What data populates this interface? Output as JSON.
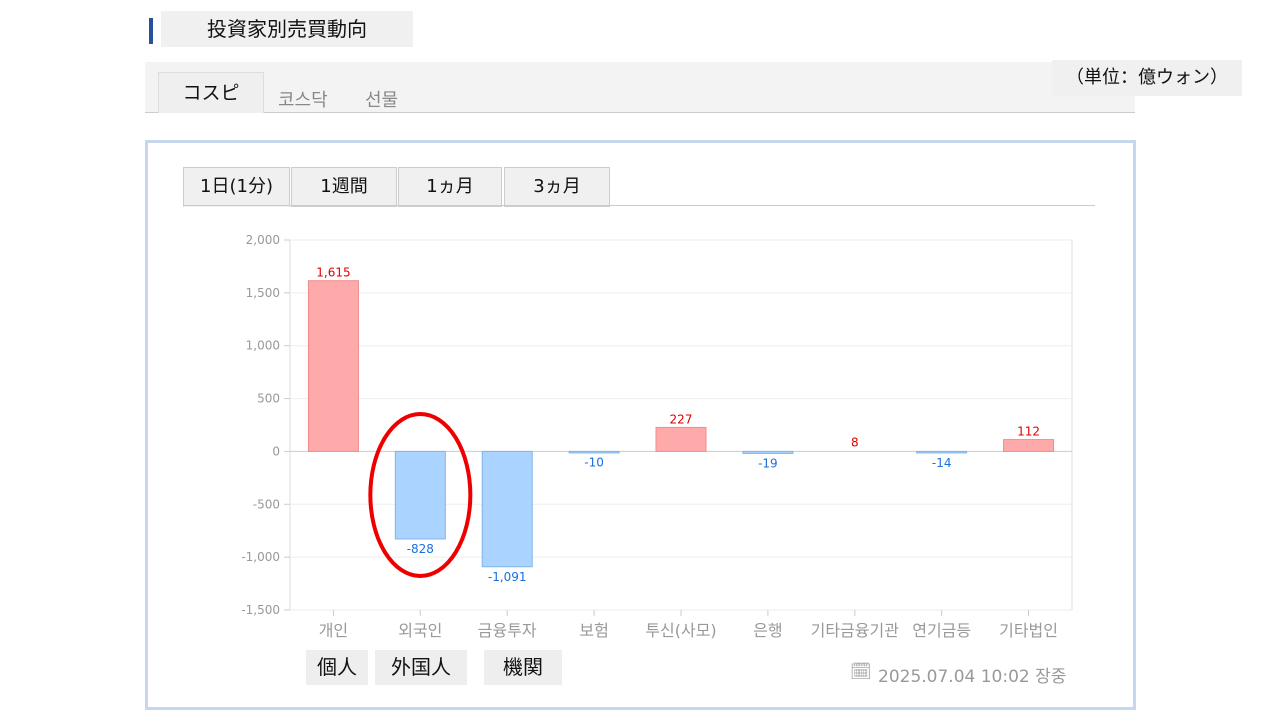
{
  "title": "投資家別売買動向",
  "unit": "（単位：億ウォン）",
  "market_tabs": [
    "コスピ",
    "코스닥",
    "선물"
  ],
  "period_tabs": [
    "1日(1分)",
    "1週間",
    "1ヵ月",
    "3ヵ月"
  ],
  "timestamp": "2025.07.04 10:02 장중",
  "annotations": [
    "個人",
    "外国人",
    "機関"
  ],
  "colors": {
    "positive": "#ffaaaa",
    "negative": "#aad4ff",
    "positive_label": "#e00000",
    "negative_label": "#1a6fe0",
    "highlight": "#ee0000"
  },
  "chart_data": {
    "type": "bar",
    "categories": [
      "개인",
      "외국인",
      "금융투자",
      "보험",
      "투신(사모)",
      "은행",
      "기타금융기관",
      "연기금등",
      "기타법인"
    ],
    "values": [
      1615,
      -828,
      -1091,
      -10,
      227,
      -19,
      8,
      -14,
      112
    ],
    "data_labels": [
      "1,615",
      "-828",
      "-1,091",
      "-10",
      "227",
      "-19",
      "8",
      "-14",
      "112"
    ],
    "ylim": [
      -1500,
      2000
    ],
    "yticks": [
      2000,
      1500,
      1000,
      500,
      0,
      -500,
      -1000,
      -1500
    ],
    "ytick_labels": [
      "2,000",
      "1,500",
      "1,000",
      "500",
      "0",
      "-500",
      "-1,000",
      "-1,500"
    ],
    "grid": true,
    "highlighted_category": "외국인"
  }
}
